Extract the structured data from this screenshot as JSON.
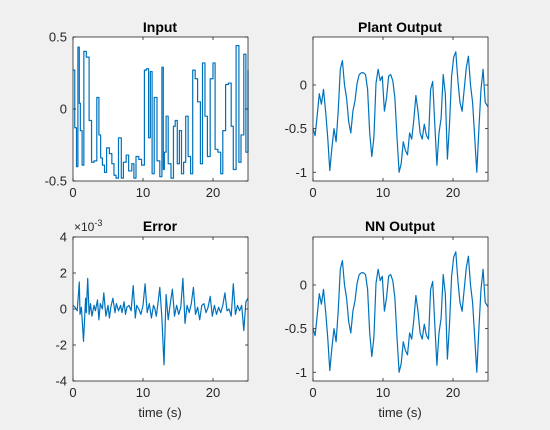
{
  "figure": {
    "background": "#f0f0f0",
    "line_color": "#0072bd",
    "axes_color": "#262626"
  },
  "chart_data": [
    {
      "id": "input",
      "type": "line",
      "title": "Input",
      "xlabel": "",
      "ylabel": "",
      "xlim": [
        0,
        25
      ],
      "ylim": [
        -0.5,
        0.5
      ],
      "xticks": [
        0,
        10,
        20
      ],
      "yticks": [
        -0.5,
        0,
        0.5
      ],
      "xtick_labels": [
        "0",
        "10",
        "20"
      ],
      "ytick_labels": [
        "-0.5",
        "0",
        "0.5"
      ],
      "exponent": "",
      "grid": false,
      "step": true,
      "series": [
        {
          "x": [
            0,
            0.25,
            0.5,
            0.7,
            0.9,
            1.05,
            1.3,
            1.55,
            1.9,
            2.3,
            2.65,
            3.0,
            3.4,
            3.7,
            3.95,
            4.2,
            4.5,
            4.8,
            5.2,
            5.55,
            5.85,
            6.15,
            6.5,
            6.9,
            7.2,
            7.6,
            7.95,
            8.4,
            8.7,
            9.0,
            9.4,
            9.8,
            10.2,
            10.5,
            10.8,
            11.05,
            11.3,
            11.6,
            12.0,
            12.4,
            12.7,
            12.9,
            13.05,
            13.3,
            13.6,
            14.0,
            14.35,
            14.6,
            14.9,
            15.2,
            15.5,
            15.8,
            16.1,
            16.45,
            16.8,
            17.1,
            17.45,
            17.8,
            18.2,
            18.5,
            18.85,
            19.2,
            19.6,
            20.0,
            20.3,
            20.7,
            21.1,
            21.4,
            21.8,
            22.2,
            22.6,
            22.9,
            23.3,
            23.7,
            24.0,
            24.4,
            24.7,
            25.0
          ],
          "y": [
            0.27,
            -0.13,
            -0.4,
            0.43,
            0.04,
            -0.15,
            -0.39,
            0.4,
            0.36,
            -0.08,
            -0.37,
            -0.36,
            0.08,
            -0.18,
            -0.34,
            -0.39,
            -0.44,
            -0.27,
            -0.31,
            -0.38,
            -0.46,
            -0.48,
            -0.2,
            -0.48,
            -0.37,
            -0.32,
            -0.43,
            -0.38,
            -0.48,
            -0.33,
            -0.35,
            -0.39,
            0.27,
            0.28,
            -0.2,
            0.26,
            -0.45,
            0.08,
            -0.36,
            -0.47,
            0.29,
            -0.42,
            -0.3,
            -0.05,
            -0.38,
            -0.48,
            -0.12,
            -0.08,
            -0.38,
            -0.15,
            -0.45,
            -0.37,
            -0.05,
            -0.33,
            -0.45,
            0.27,
            0.21,
            0.05,
            -0.38,
            0.32,
            -0.05,
            -0.33,
            0.21,
            0.32,
            -0.28,
            -0.3,
            -0.45,
            -0.15,
            0.17,
            0.18,
            -0.12,
            -0.42,
            0.44,
            -0.37,
            -0.18,
            0.38,
            -0.3,
            0.27
          ]
        }
      ]
    },
    {
      "id": "plant-output",
      "type": "line",
      "title": "Plant Output",
      "xlabel": "",
      "ylabel": "",
      "xlim": [
        0,
        25
      ],
      "ylim": [
        -1.1,
        0.55
      ],
      "xticks": [
        0,
        10,
        20
      ],
      "yticks": [
        -1,
        -0.5,
        0
      ],
      "xtick_labels": [
        "0",
        "10",
        "20"
      ],
      "ytick_labels": [
        "-1",
        "-0.5",
        "0"
      ],
      "exponent": "",
      "grid": false,
      "step": false,
      "series": [
        {
          "x": [
            0,
            0.3,
            0.6,
            0.9,
            1.2,
            1.5,
            1.8,
            2.1,
            2.4,
            2.7,
            3.0,
            3.3,
            3.6,
            3.9,
            4.2,
            4.5,
            4.8,
            5.1,
            5.4,
            5.7,
            6.0,
            6.3,
            6.6,
            6.9,
            7.2,
            7.5,
            7.8,
            8.1,
            8.4,
            8.7,
            9.0,
            9.3,
            9.6,
            9.9,
            10.2,
            10.5,
            10.8,
            11.1,
            11.4,
            11.7,
            12.0,
            12.3,
            12.6,
            12.9,
            13.2,
            13.5,
            13.8,
            14.1,
            14.4,
            14.7,
            15.0,
            15.3,
            15.6,
            15.9,
            16.2,
            16.5,
            16.8,
            17.1,
            17.4,
            17.7,
            18.0,
            18.3,
            18.6,
            18.9,
            19.2,
            19.5,
            19.8,
            20.1,
            20.4,
            20.7,
            21.0,
            21.3,
            21.6,
            21.9,
            22.2,
            22.5,
            22.8,
            23.1,
            23.4,
            23.7,
            24.0,
            24.3,
            24.6,
            25.0
          ],
          "y": [
            -0.5,
            -0.58,
            -0.35,
            -0.1,
            -0.22,
            -0.05,
            -0.3,
            -0.6,
            -0.98,
            -0.72,
            -0.5,
            -0.65,
            -0.3,
            0.18,
            0.28,
            0.0,
            -0.15,
            -0.42,
            -0.55,
            -0.3,
            -0.18,
            0.02,
            0.12,
            0.14,
            0.14,
            0.12,
            -0.05,
            -0.55,
            -0.82,
            -0.6,
            0.02,
            0.18,
            0.05,
            0.1,
            -0.3,
            -0.15,
            0.1,
            0.12,
            0.05,
            -0.15,
            -0.6,
            -1.0,
            -0.9,
            -0.65,
            -0.75,
            -0.8,
            -0.55,
            -0.62,
            -0.4,
            -0.12,
            -0.3,
            -0.55,
            -0.62,
            -0.45,
            -0.58,
            -0.62,
            -0.05,
            0.04,
            -0.45,
            -0.92,
            -0.55,
            -0.38,
            0.12,
            -0.1,
            -0.85,
            -0.45,
            0.1,
            0.32,
            0.38,
            0.05,
            -0.2,
            -0.3,
            -0.05,
            0.2,
            0.33,
            0.0,
            -0.2,
            -0.6,
            -1.0,
            -0.5,
            -0.05,
            0.18,
            -0.2,
            -0.25
          ]
        }
      ]
    },
    {
      "id": "error",
      "type": "line",
      "title": "Error",
      "xlabel": "time (s)",
      "ylabel": "",
      "xlim": [
        0,
        25
      ],
      "ylim": [
        -4,
        4
      ],
      "xticks": [
        0,
        10,
        20
      ],
      "yticks": [
        -4,
        -2,
        0,
        2,
        4
      ],
      "xtick_labels": [
        "0",
        "10",
        "20"
      ],
      "ytick_labels": [
        "-4",
        "-2",
        "0",
        "2",
        "4"
      ],
      "exponent": "×10",
      "exponent_power": "-3",
      "grid": false,
      "step": false,
      "series": [
        {
          "x": [
            0,
            0.3,
            0.6,
            0.9,
            1.0,
            1.2,
            1.5,
            1.8,
            1.9,
            2.1,
            2.3,
            2.5,
            2.7,
            3.0,
            3.2,
            3.5,
            3.7,
            3.9,
            4.2,
            4.4,
            4.7,
            5.0,
            5.2,
            5.4,
            5.7,
            6.0,
            6.2,
            6.5,
            6.8,
            7.0,
            7.3,
            7.5,
            7.7,
            8.0,
            8.3,
            8.6,
            8.9,
            9.1,
            9.4,
            9.7,
            10.0,
            10.3,
            10.6,
            10.9,
            11.2,
            11.5,
            11.7,
            11.9,
            12.1,
            12.4,
            12.7,
            13.0,
            13.3,
            13.6,
            13.9,
            14.2,
            14.5,
            14.8,
            15.1,
            15.4,
            15.7,
            16.0,
            16.3,
            16.6,
            16.9,
            17.2,
            17.5,
            17.8,
            18.1,
            18.4,
            18.7,
            19.0,
            19.3,
            19.6,
            19.9,
            20.2,
            20.5,
            20.8,
            21.1,
            21.4,
            21.7,
            22.0,
            22.3,
            22.6,
            22.9,
            23.2,
            23.5,
            23.8,
            24.1,
            24.4,
            24.7,
            25.0
          ],
          "y": [
            0.2,
            0.1,
            -0.1,
            1.5,
            -0.3,
            0.1,
            -1.8,
            0.6,
            -0.2,
            1.7,
            -0.3,
            0.3,
            -0.4,
            0.2,
            -0.1,
            0.5,
            -0.6,
            0.3,
            0.0,
            0.9,
            -0.4,
            0.2,
            -0.5,
            0.1,
            0.6,
            -0.2,
            0.3,
            -0.1,
            0.2,
            -0.2,
            0.4,
            -0.3,
            0.1,
            0.2,
            -0.1,
            1.3,
            -0.5,
            0.2,
            0.0,
            -0.3,
            0.2,
            1.4,
            -0.2,
            0.3,
            -0.5,
            0.2,
            0.0,
            -0.4,
            0.2,
            1.2,
            -0.5,
            -3.1,
            0.8,
            -0.6,
            0.3,
            1.1,
            -0.4,
            0.2,
            -0.3,
            0.1,
            1.7,
            -0.8,
            0.2,
            -0.2,
            0.3,
            1.2,
            -0.3,
            0.1,
            -0.6,
            0.2,
            0.3,
            -0.2,
            0.1,
            0.7,
            -0.4,
            0.2,
            -0.3,
            0.1,
            -0.2,
            0.2,
            0.9,
            -0.1,
            0.0,
            -0.4,
            1.4,
            -0.3,
            0.2,
            -0.1,
            0.2,
            -1.2,
            0.4,
            0.6
          ]
        }
      ]
    },
    {
      "id": "nn-output",
      "type": "line",
      "title": "NN Output",
      "xlabel": "time (s)",
      "ylabel": "",
      "xlim": [
        0,
        25
      ],
      "ylim": [
        -1.1,
        0.55
      ],
      "xticks": [
        0,
        10,
        20
      ],
      "yticks": [
        -1,
        -0.5,
        0
      ],
      "xtick_labels": [
        "0",
        "10",
        "20"
      ],
      "ytick_labels": [
        "-1",
        "-0.5",
        "0"
      ],
      "exponent": "",
      "grid": false,
      "step": false,
      "series": [
        {
          "x": [
            0,
            0.3,
            0.6,
            0.9,
            1.2,
            1.5,
            1.8,
            2.1,
            2.4,
            2.7,
            3.0,
            3.3,
            3.6,
            3.9,
            4.2,
            4.5,
            4.8,
            5.1,
            5.4,
            5.7,
            6.0,
            6.3,
            6.6,
            6.9,
            7.2,
            7.5,
            7.8,
            8.1,
            8.4,
            8.7,
            9.0,
            9.3,
            9.6,
            9.9,
            10.2,
            10.5,
            10.8,
            11.1,
            11.4,
            11.7,
            12.0,
            12.3,
            12.6,
            12.9,
            13.2,
            13.5,
            13.8,
            14.1,
            14.4,
            14.7,
            15.0,
            15.3,
            15.6,
            15.9,
            16.2,
            16.5,
            16.8,
            17.1,
            17.4,
            17.7,
            18.0,
            18.3,
            18.6,
            18.9,
            19.2,
            19.5,
            19.8,
            20.1,
            20.4,
            20.7,
            21.0,
            21.3,
            21.6,
            21.9,
            22.2,
            22.5,
            22.8,
            23.1,
            23.4,
            23.7,
            24.0,
            24.3,
            24.6,
            25.0
          ],
          "y": [
            -0.5,
            -0.58,
            -0.35,
            -0.1,
            -0.22,
            -0.05,
            -0.3,
            -0.6,
            -0.98,
            -0.72,
            -0.5,
            -0.65,
            -0.3,
            0.18,
            0.28,
            0.0,
            -0.15,
            -0.42,
            -0.55,
            -0.3,
            -0.18,
            0.02,
            0.12,
            0.14,
            0.14,
            0.12,
            -0.05,
            -0.55,
            -0.82,
            -0.6,
            0.02,
            0.18,
            0.05,
            0.1,
            -0.3,
            -0.15,
            0.1,
            0.12,
            0.05,
            -0.15,
            -0.6,
            -1.0,
            -0.9,
            -0.65,
            -0.75,
            -0.8,
            -0.55,
            -0.62,
            -0.4,
            -0.12,
            -0.3,
            -0.55,
            -0.62,
            -0.45,
            -0.58,
            -0.62,
            -0.05,
            0.04,
            -0.45,
            -0.92,
            -0.55,
            -0.38,
            0.12,
            -0.1,
            -0.85,
            -0.45,
            0.1,
            0.32,
            0.38,
            0.05,
            -0.2,
            -0.3,
            -0.05,
            0.2,
            0.33,
            0.0,
            -0.2,
            -0.6,
            -1.0,
            -0.5,
            -0.05,
            0.18,
            -0.2,
            -0.25
          ]
        }
      ]
    }
  ]
}
